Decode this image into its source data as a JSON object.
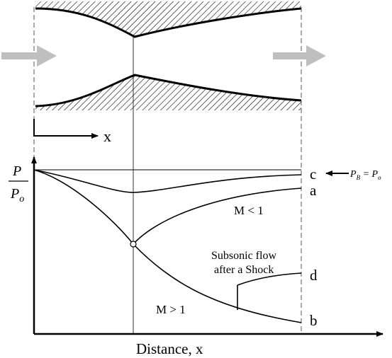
{
  "nozzle": {
    "axis_label": "x"
  },
  "plot": {
    "y_label_top": "P",
    "y_label_bottom": "P",
    "y_label_bottom_sub": "o",
    "x_label": "Distance, x"
  },
  "curves": {
    "c": "c",
    "a": "a",
    "d": "d",
    "b": "b"
  },
  "annotations": {
    "subsonic_mach": "M < 1",
    "supersonic_mach": "M > 1",
    "shock_line1": "Subsonic flow",
    "shock_line2": "after a Shock",
    "pb_label": "P",
    "pb_sub": "B",
    "pb_eq": " = P",
    "po_sub": "o"
  },
  "colors": {
    "ink": "#000000",
    "arrow_gray": "#bfbfbf",
    "dash": "#555555"
  }
}
